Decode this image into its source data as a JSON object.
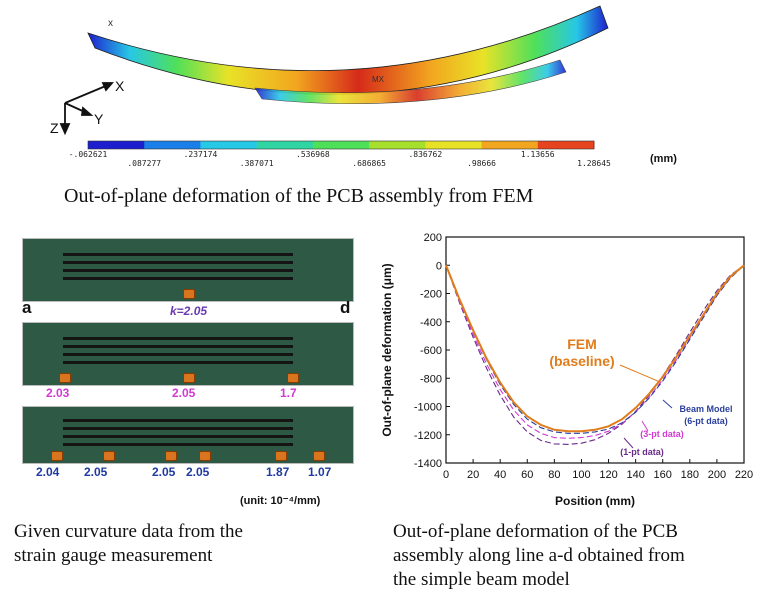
{
  "fem": {
    "x_label": "X",
    "y_label": "Y",
    "z_label": "Z",
    "corner_mark": "x",
    "mx_mark": "MX",
    "colorbar_values": [
      "-.062621",
      ".087277",
      ".237174",
      ".387071",
      ".536968",
      ".686865",
      ".836762",
      ".98666",
      "1.13656",
      "1.28645"
    ],
    "colorbar_colors": [
      "#1d1fcf",
      "#1a7fe8",
      "#27c7e6",
      "#2fd6a4",
      "#4fe05a",
      "#a6e02c",
      "#e8e227",
      "#f2a61f",
      "#e6441f"
    ],
    "unit": "(mm)",
    "caption": "Out-of-plane deformation of the PCB assembly from FEM"
  },
  "photos": {
    "left_mark": "a",
    "right_mark": "d",
    "k_label": "k=2.05",
    "row2": [
      "2.03",
      "2.05",
      "1.7"
    ],
    "row3": [
      "2.04",
      "2.05",
      "2.05",
      "2.05",
      "1.87",
      "1.07"
    ],
    "unit": "(unit: 10⁻⁴/mm)",
    "caption_lines": [
      "Given curvature data from the",
      "strain gauge measurement"
    ]
  },
  "chart_data": {
    "type": "line",
    "xlabel": "Position (mm)",
    "ylabel": "Out-of-plane deformation (μm)",
    "xlim": [
      0,
      220
    ],
    "ylim": [
      -1400,
      200
    ],
    "xticks": [
      0,
      20,
      40,
      60,
      80,
      100,
      120,
      140,
      160,
      180,
      200,
      220
    ],
    "yticks": [
      200,
      0,
      -200,
      -400,
      -600,
      -800,
      -1000,
      -1200,
      -1400
    ],
    "x": [
      0,
      10,
      20,
      30,
      40,
      50,
      60,
      70,
      80,
      90,
      100,
      110,
      120,
      130,
      140,
      150,
      160,
      170,
      180,
      190,
      200,
      210,
      220
    ],
    "series": [
      {
        "name": "FEM (baseline)",
        "color": "#e07c1c",
        "dash": "",
        "values": [
          0,
          -240,
          -460,
          -660,
          -830,
          -970,
          -1070,
          -1130,
          -1165,
          -1175,
          -1175,
          -1165,
          -1140,
          -1090,
          -1010,
          -910,
          -790,
          -650,
          -500,
          -350,
          -200,
          -80,
          0
        ]
      },
      {
        "name": "Beam Model (6-pt data)",
        "color": "#2a3f9c",
        "dash": "6,3",
        "values": [
          0,
          -245,
          -470,
          -670,
          -845,
          -985,
          -1090,
          -1150,
          -1180,
          -1190,
          -1190,
          -1180,
          -1160,
          -1115,
          -1040,
          -940,
          -820,
          -680,
          -525,
          -370,
          -215,
          -90,
          0
        ]
      },
      {
        "name": "(3-pt data)",
        "color": "#d13ad1",
        "dash": "6,3",
        "values": [
          0,
          -255,
          -490,
          -700,
          -880,
          -1025,
          -1130,
          -1190,
          -1220,
          -1225,
          -1220,
          -1205,
          -1175,
          -1120,
          -1040,
          -935,
          -810,
          -670,
          -515,
          -360,
          -210,
          -85,
          0
        ]
      },
      {
        "name": "(1-pt data)",
        "color": "#6a2a8a",
        "dash": "6,3",
        "values": [
          0,
          -265,
          -510,
          -730,
          -920,
          -1075,
          -1180,
          -1240,
          -1265,
          -1268,
          -1260,
          -1235,
          -1190,
          -1125,
          -1035,
          -920,
          -785,
          -635,
          -475,
          -320,
          -180,
          -70,
          0
        ]
      }
    ],
    "annotations": {
      "fem_line1": "FEM",
      "fem_line2": "(baseline)",
      "beam_line1": "Beam Model",
      "beam_line2": "(6-pt data)",
      "three_pt": "(3-pt data)",
      "one_pt": "(1-pt data)"
    },
    "caption_lines": [
      "Out-of-plane deformation of the PCB",
      "assembly along line a-d obtained from",
      "the simple beam model"
    ]
  }
}
